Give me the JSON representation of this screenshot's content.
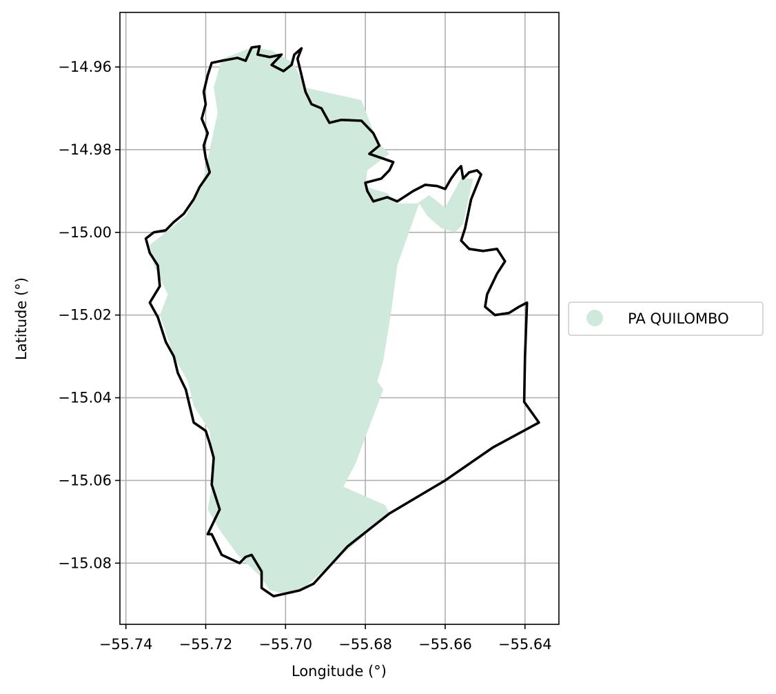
{
  "map": {
    "xlabel": "Longitude (°)",
    "ylabel": "Latitude (°)",
    "xlim": [
      -55.7415,
      -55.6315
    ],
    "ylim": [
      -15.0948,
      -14.9468
    ],
    "grid": true,
    "x_ticks": [
      {
        "value": -55.74,
        "label": "−55.74"
      },
      {
        "value": -55.72,
        "label": "−55.72"
      },
      {
        "value": -55.7,
        "label": "−55.70"
      },
      {
        "value": -55.68,
        "label": "−55.68"
      },
      {
        "value": -55.66,
        "label": "−55.66"
      },
      {
        "value": -55.64,
        "label": "−55.64"
      }
    ],
    "y_ticks": [
      {
        "value": -14.96,
        "label": "−14.96"
      },
      {
        "value": -14.98,
        "label": "−14.98"
      },
      {
        "value": -15.0,
        "label": "−15.00"
      },
      {
        "value": -15.02,
        "label": "−15.02"
      },
      {
        "value": -15.04,
        "label": "−15.04"
      },
      {
        "value": -15.06,
        "label": "−15.06"
      },
      {
        "value": -15.08,
        "label": "−15.08"
      }
    ],
    "legend": {
      "placement": "center-right outside",
      "items": [
        {
          "label": "PA QUILOMBO",
          "color": "#cfeadd"
        }
      ]
    },
    "layers": {
      "fill_color": "#cfeadd",
      "boundary_color": "#000000",
      "fill_polygon": [
        [
          -55.7085,
          -14.9553
        ],
        [
          -55.7035,
          -14.956
        ],
        [
          -55.698,
          -14.959
        ],
        [
          -55.695,
          -14.965
        ],
        [
          -55.681,
          -14.968
        ],
        [
          -55.677,
          -14.978
        ],
        [
          -55.674,
          -14.981
        ],
        [
          -55.6795,
          -14.985
        ],
        [
          -55.68,
          -14.989
        ],
        [
          -55.6745,
          -14.9905
        ],
        [
          -55.672,
          -14.993
        ],
        [
          -55.667,
          -14.993
        ],
        [
          -55.664,
          -14.991
        ],
        [
          -55.66,
          -14.994
        ],
        [
          -55.656,
          -14.987
        ],
        [
          -55.653,
          -14.987
        ],
        [
          -55.6555,
          -14.998
        ],
        [
          -55.6575,
          -15.0
        ],
        [
          -55.661,
          -14.999
        ],
        [
          -55.6645,
          -14.996
        ],
        [
          -55.6665,
          -14.993
        ],
        [
          -55.672,
          -15.008
        ],
        [
          -55.6735,
          -15.019
        ],
        [
          -55.6755,
          -15.031
        ],
        [
          -55.677,
          -15.036
        ],
        [
          -55.6755,
          -15.038
        ],
        [
          -55.679,
          -15.047
        ],
        [
          -55.6825,
          -15.056
        ],
        [
          -55.6855,
          -15.0615
        ],
        [
          -55.675,
          -15.066
        ],
        [
          -55.674,
          -15.068
        ],
        [
          -55.696,
          -15.0865
        ],
        [
          -55.7,
          -15.0875
        ],
        [
          -55.704,
          -15.0865
        ],
        [
          -55.7065,
          -15.083
        ],
        [
          -55.712,
          -15.078
        ],
        [
          -55.7165,
          -15.072
        ],
        [
          -55.7195,
          -15.067
        ],
        [
          -55.718,
          -15.059
        ],
        [
          -55.719,
          -15.048
        ],
        [
          -55.723,
          -15.042
        ],
        [
          -55.7245,
          -15.036
        ],
        [
          -55.728,
          -15.03
        ],
        [
          -55.7315,
          -15.02
        ],
        [
          -55.7295,
          -15.015
        ],
        [
          -55.733,
          -15.008
        ],
        [
          -55.734,
          -15.003
        ],
        [
          -55.73,
          -15.0
        ],
        [
          -55.725,
          -14.996
        ],
        [
          -55.721,
          -14.989
        ],
        [
          -55.719,
          -14.98
        ],
        [
          -55.717,
          -14.971
        ],
        [
          -55.718,
          -14.965
        ],
        [
          -55.716,
          -14.958
        ],
        [
          -55.713,
          -14.957
        ]
      ],
      "boundary_line": [
        [
          -55.716,
          -14.9585
        ],
        [
          -55.712,
          -14.9578
        ],
        [
          -55.71,
          -14.9585
        ],
        [
          -55.7085,
          -14.9553
        ],
        [
          -55.7065,
          -14.955
        ],
        [
          -55.707,
          -14.957
        ],
        [
          -55.704,
          -14.9576
        ],
        [
          -55.701,
          -14.957
        ],
        [
          -55.7035,
          -14.9595
        ],
        [
          -55.7005,
          -14.961
        ],
        [
          -55.6985,
          -14.9595
        ],
        [
          -55.6978,
          -14.957
        ],
        [
          -55.696,
          -14.9555
        ],
        [
          -55.697,
          -14.958
        ],
        [
          -55.696,
          -14.962
        ],
        [
          -55.695,
          -14.966
        ],
        [
          -55.6935,
          -14.969
        ],
        [
          -55.691,
          -14.97
        ],
        [
          -55.689,
          -14.9735
        ],
        [
          -55.686,
          -14.9728
        ],
        [
          -55.681,
          -14.973
        ],
        [
          -55.678,
          -14.976
        ],
        [
          -55.6765,
          -14.979
        ],
        [
          -55.679,
          -14.981
        ],
        [
          -55.673,
          -14.983
        ],
        [
          -55.674,
          -14.985
        ],
        [
          -55.676,
          -14.987
        ],
        [
          -55.68,
          -14.988
        ],
        [
          -55.6795,
          -14.99
        ],
        [
          -55.678,
          -14.9925
        ],
        [
          -55.6745,
          -14.9915
        ],
        [
          -55.672,
          -14.9925
        ],
        [
          -55.668,
          -14.99
        ],
        [
          -55.665,
          -14.9885
        ],
        [
          -55.662,
          -14.9888
        ],
        [
          -55.66,
          -14.9895
        ],
        [
          -55.6585,
          -14.987
        ],
        [
          -55.657,
          -14.985
        ],
        [
          -55.656,
          -14.984
        ],
        [
          -55.6555,
          -14.987
        ],
        [
          -55.654,
          -14.9855
        ],
        [
          -55.652,
          -14.985
        ],
        [
          -55.651,
          -14.986
        ],
        [
          -55.6535,
          -14.992
        ],
        [
          -55.655,
          -14.999
        ],
        [
          -55.656,
          -15.002
        ],
        [
          -55.654,
          -15.004
        ],
        [
          -55.6505,
          -15.0045
        ],
        [
          -55.647,
          -15.004
        ],
        [
          -55.645,
          -15.007
        ],
        [
          -55.647,
          -15.01
        ],
        [
          -55.6495,
          -15.015
        ],
        [
          -55.65,
          -15.018
        ],
        [
          -55.6475,
          -15.02
        ],
        [
          -55.644,
          -15.0195
        ],
        [
          -55.6415,
          -15.018
        ],
        [
          -55.6395,
          -15.017
        ],
        [
          -55.64,
          -15.03
        ],
        [
          -55.6402,
          -15.041
        ],
        [
          -55.6365,
          -15.046
        ],
        [
          -55.648,
          -15.052
        ],
        [
          -55.66,
          -15.06
        ],
        [
          -55.674,
          -15.068
        ],
        [
          -55.6845,
          -15.076
        ],
        [
          -55.693,
          -15.085
        ],
        [
          -55.6965,
          -15.0866
        ],
        [
          -55.703,
          -15.088
        ],
        [
          -55.706,
          -15.086
        ],
        [
          -55.706,
          -15.082
        ],
        [
          -55.7085,
          -15.078
        ],
        [
          -55.71,
          -15.0785
        ],
        [
          -55.7115,
          -15.08
        ],
        [
          -55.716,
          -15.078
        ],
        [
          -55.7185,
          -15.073
        ],
        [
          -55.7195,
          -15.073
        ],
        [
          -55.7165,
          -15.067
        ],
        [
          -55.7185,
          -15.061
        ],
        [
          -55.718,
          -15.0545
        ],
        [
          -55.719,
          -15.051
        ],
        [
          -55.72,
          -15.048
        ],
        [
          -55.723,
          -15.046
        ],
        [
          -55.724,
          -15.042
        ],
        [
          -55.725,
          -15.038
        ],
        [
          -55.727,
          -15.034
        ],
        [
          -55.728,
          -15.03
        ],
        [
          -55.73,
          -15.0265
        ],
        [
          -55.732,
          -15.0205
        ],
        [
          -55.734,
          -15.017
        ],
        [
          -55.7315,
          -15.013
        ],
        [
          -55.732,
          -15.008
        ],
        [
          -55.734,
          -15.005
        ],
        [
          -55.735,
          -15.0015
        ],
        [
          -55.733,
          -15.0
        ],
        [
          -55.73,
          -14.9995
        ],
        [
          -55.728,
          -14.9975
        ],
        [
          -55.7255,
          -14.9955
        ],
        [
          -55.723,
          -14.992
        ],
        [
          -55.7215,
          -14.989
        ],
        [
          -55.719,
          -14.9855
        ],
        [
          -55.72,
          -14.982
        ],
        [
          -55.7205,
          -14.979
        ],
        [
          -55.7195,
          -14.976
        ],
        [
          -55.721,
          -14.9725
        ],
        [
          -55.72,
          -14.969
        ],
        [
          -55.7205,
          -14.966
        ],
        [
          -55.7195,
          -14.962
        ],
        [
          -55.7185,
          -14.959
        ],
        [
          -55.716,
          -14.9585
        ]
      ]
    }
  }
}
